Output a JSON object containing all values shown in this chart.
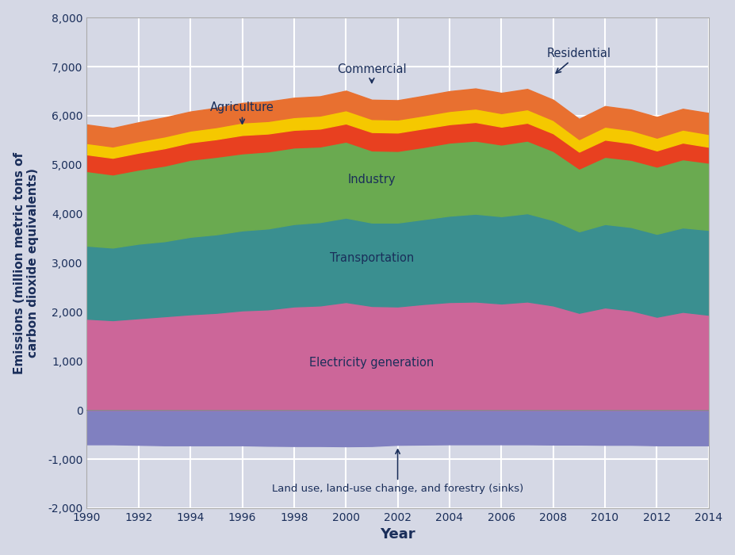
{
  "years": [
    1990,
    1991,
    1992,
    1993,
    1994,
    1995,
    1996,
    1997,
    1998,
    1999,
    2000,
    2001,
    2002,
    2003,
    2004,
    2005,
    2006,
    2007,
    2008,
    2009,
    2010,
    2011,
    2012,
    2013,
    2014
  ],
  "electricity": [
    1860,
    1830,
    1870,
    1910,
    1950,
    1980,
    2030,
    2050,
    2110,
    2130,
    2200,
    2120,
    2110,
    2160,
    2200,
    2210,
    2170,
    2210,
    2130,
    1980,
    2090,
    2030,
    1900,
    2000,
    1940
  ],
  "transportation": [
    1490,
    1480,
    1520,
    1530,
    1580,
    1600,
    1630,
    1650,
    1680,
    1700,
    1720,
    1700,
    1710,
    1730,
    1760,
    1790,
    1780,
    1800,
    1740,
    1660,
    1700,
    1700,
    1690,
    1720,
    1730
  ],
  "industry": [
    1520,
    1490,
    1510,
    1540,
    1570,
    1580,
    1570,
    1570,
    1560,
    1540,
    1550,
    1470,
    1460,
    1470,
    1490,
    1490,
    1460,
    1480,
    1410,
    1280,
    1370,
    1370,
    1370,
    1390,
    1370
  ],
  "residential": [
    340,
    340,
    345,
    355,
    355,
    360,
    375,
    365,
    360,
    365,
    370,
    375,
    375,
    380,
    375,
    380,
    365,
    365,
    360,
    345,
    350,
    340,
    330,
    340,
    325
  ],
  "commercial": [
    230,
    230,
    235,
    240,
    240,
    245,
    255,
    255,
    260,
    265,
    270,
    265,
    265,
    265,
    270,
    275,
    275,
    275,
    270,
    255,
    265,
    265,
    260,
    265,
    260
  ],
  "agriculture": [
    380,
    380,
    385,
    390,
    390,
    395,
    400,
    400,
    395,
    395,
    400,
    395,
    395,
    400,
    405,
    410,
    415,
    415,
    415,
    415,
    420,
    420,
    425,
    425,
    430
  ],
  "land_use": [
    -700,
    -700,
    -710,
    -720,
    -720,
    -720,
    -720,
    -730,
    -735,
    -735,
    -740,
    -735,
    -710,
    -705,
    -700,
    -700,
    -700,
    -700,
    -705,
    -705,
    -710,
    -710,
    -720,
    -720,
    -720
  ],
  "colors": {
    "electricity": "#cc6699",
    "transportation": "#3a8f90",
    "industry": "#6aaa50",
    "residential": "#e84020",
    "commercial": "#f5c800",
    "agriculture": "#e87030",
    "land_use": "#8080c0",
    "background": "#cdd0de"
  },
  "background_color": "#d5d8e5",
  "title_color": "#1a2e5a",
  "ylabel": "Emissions (million metric tons of\ncarbon dioxide equivalents)",
  "xlabel": "Year",
  "ylim": [
    -2000,
    8000
  ],
  "yticks": [
    -2000,
    -1000,
    0,
    1000,
    2000,
    3000,
    4000,
    5000,
    6000,
    7000,
    8000
  ]
}
